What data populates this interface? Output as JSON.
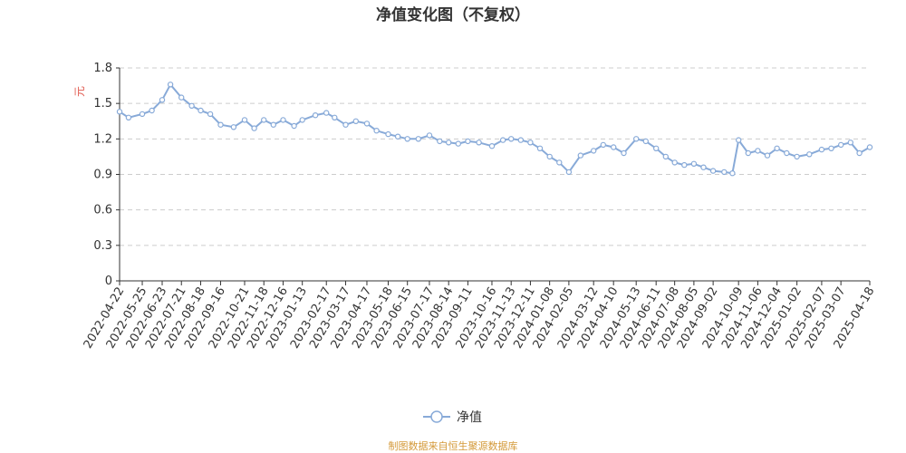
{
  "chart_data": {
    "type": "line",
    "title": "净值变化图（不复权）",
    "ylabel": "元",
    "ylim": [
      0,
      1.8
    ],
    "yticks": [
      "0",
      "0.3",
      "0.6",
      "0.9",
      "1.2",
      "1.5",
      "1.8"
    ],
    "grid": true,
    "legend_position": "bottom-center",
    "colors": {
      "line": "#88aad8",
      "marker_fill": "#ffffff",
      "grid": "#cccccc",
      "axis": "#333333"
    },
    "categories": [
      "2022-04-22",
      "2022-05-25",
      "2022-06-23",
      "2022-07-21",
      "2022-08-18",
      "2022-09-16",
      "2022-10-21",
      "2022-11-18",
      "2022-12-16",
      "2023-01-13",
      "2023-02-17",
      "2023-03-17",
      "2023-04-17",
      "2023-05-18",
      "2023-06-15",
      "2023-07-17",
      "2023-08-14",
      "2023-09-11",
      "2023-10-16",
      "2023-11-13",
      "2023-12-11",
      "2024-01-08",
      "2024-02-05",
      "2024-03-12",
      "2024-04-10",
      "2024-05-13",
      "2024-06-11",
      "2024-07-08",
      "2024-08-05",
      "2024-09-02",
      "2024-10-09",
      "2024-11-06",
      "2024-12-04",
      "2025-01-02",
      "2025-02-07",
      "2025-03-07",
      "2025-04-18"
    ],
    "series": [
      {
        "name": "净值",
        "x": [
          "2022-04-22",
          "2022-05-05",
          "2022-05-25",
          "2022-06-08",
          "2022-06-23",
          "2022-07-05",
          "2022-07-21",
          "2022-08-05",
          "2022-08-18",
          "2022-09-01",
          "2022-09-16",
          "2022-10-05",
          "2022-10-21",
          "2022-11-04",
          "2022-11-18",
          "2022-12-02",
          "2022-12-16",
          "2023-01-01",
          "2023-01-13",
          "2023-02-01",
          "2023-02-17",
          "2023-03-01",
          "2023-03-17",
          "2023-04-01",
          "2023-04-17",
          "2023-05-01",
          "2023-05-18",
          "2023-06-01",
          "2023-06-15",
          "2023-07-01",
          "2023-07-17",
          "2023-08-01",
          "2023-08-14",
          "2023-08-28",
          "2023-09-11",
          "2023-09-27",
          "2023-10-16",
          "2023-11-01",
          "2023-11-13",
          "2023-11-27",
          "2023-12-11",
          "2023-12-25",
          "2024-01-08",
          "2024-01-22",
          "2024-02-05",
          "2024-02-22",
          "2024-03-12",
          "2024-03-26",
          "2024-04-10",
          "2024-04-25",
          "2024-05-13",
          "2024-05-27",
          "2024-06-11",
          "2024-06-25",
          "2024-07-08",
          "2024-07-22",
          "2024-08-05",
          "2024-08-19",
          "2024-09-02",
          "2024-09-18",
          "2024-09-30",
          "2024-10-09",
          "2024-10-23",
          "2024-11-06",
          "2024-11-20",
          "2024-12-04",
          "2024-12-18",
          "2025-01-02",
          "2025-01-20",
          "2025-02-07",
          "2025-02-21",
          "2025-03-07",
          "2025-03-21",
          "2025-04-03",
          "2025-04-18"
        ],
        "values": [
          1.43,
          1.38,
          1.41,
          1.44,
          1.53,
          1.66,
          1.55,
          1.48,
          1.44,
          1.41,
          1.32,
          1.3,
          1.36,
          1.29,
          1.36,
          1.32,
          1.36,
          1.31,
          1.36,
          1.4,
          1.42,
          1.38,
          1.32,
          1.35,
          1.33,
          1.27,
          1.24,
          1.22,
          1.2,
          1.2,
          1.23,
          1.18,
          1.17,
          1.16,
          1.18,
          1.17,
          1.14,
          1.19,
          1.2,
          1.19,
          1.17,
          1.12,
          1.05,
          1.0,
          0.92,
          1.06,
          1.1,
          1.15,
          1.13,
          1.08,
          1.2,
          1.18,
          1.12,
          1.05,
          1.0,
          0.98,
          0.99,
          0.96,
          0.93,
          0.92,
          0.91,
          1.19,
          1.08,
          1.1,
          1.06,
          1.12,
          1.08,
          1.05,
          1.07,
          1.11,
          1.12,
          1.15,
          1.17,
          1.08,
          1.13
        ]
      }
    ]
  },
  "legend": {
    "label": "净值"
  },
  "source": "制图数据来自恒生聚源数据库"
}
